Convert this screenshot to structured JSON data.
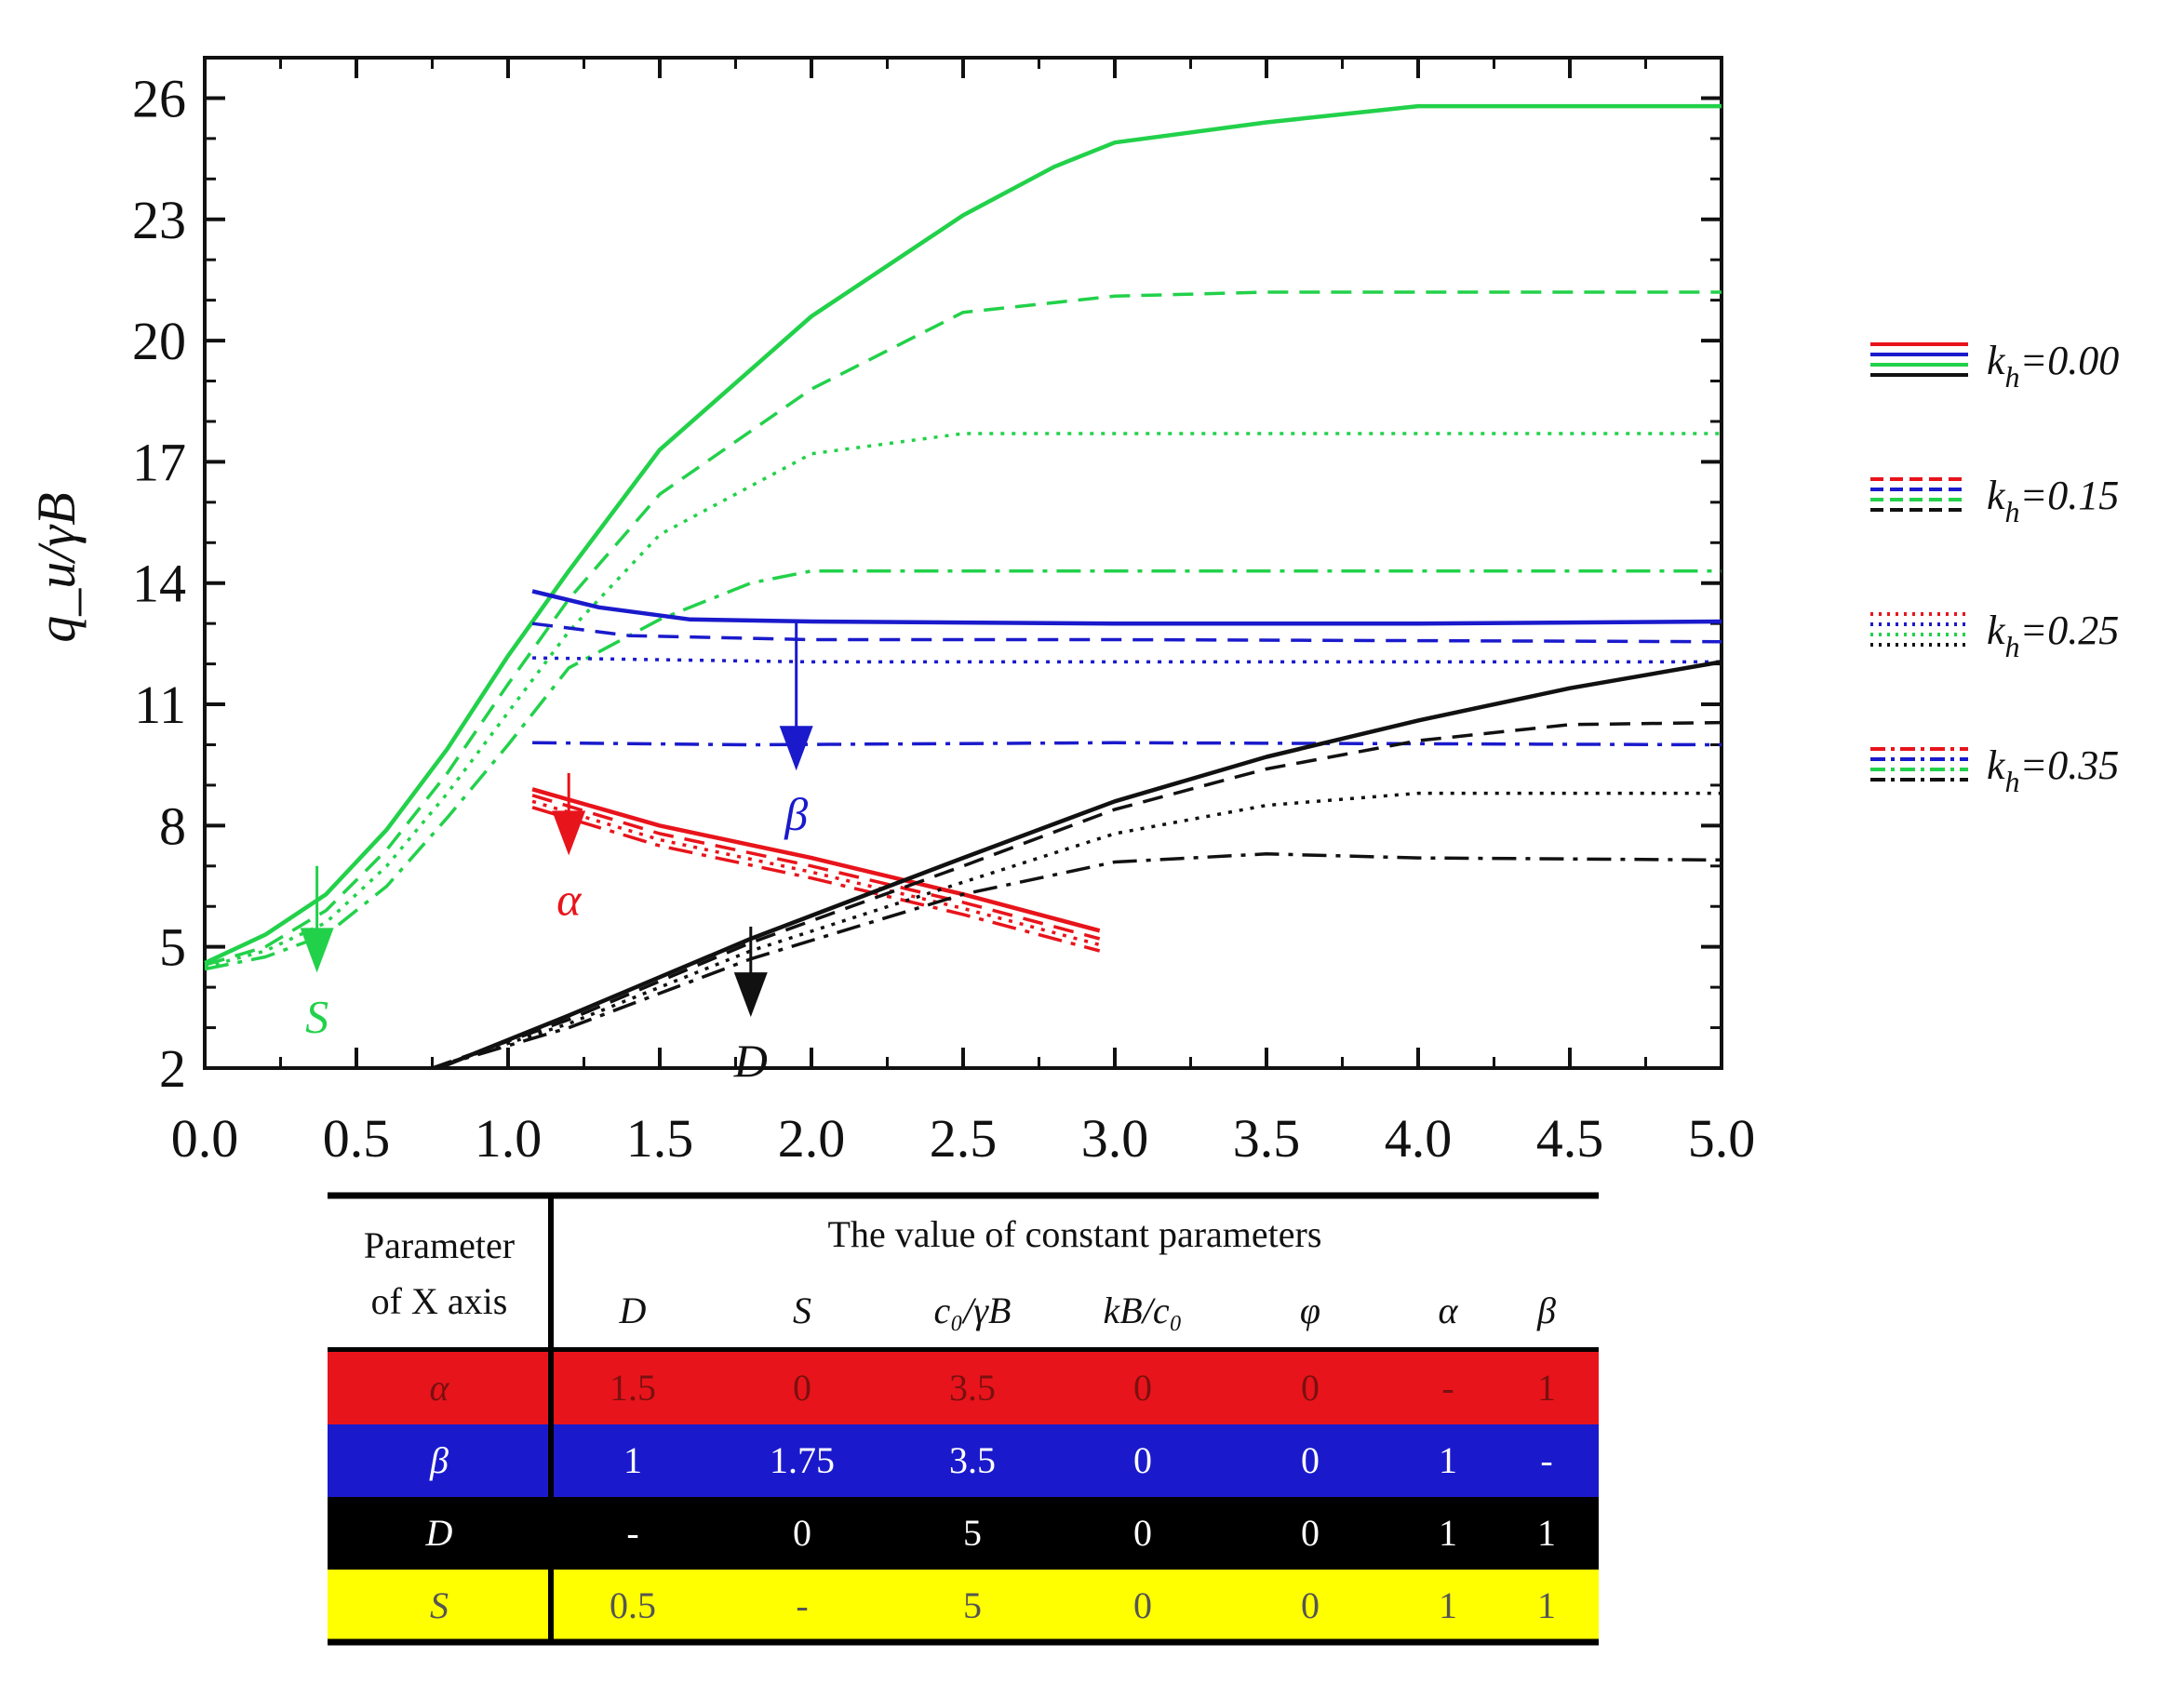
{
  "chart_data": {
    "type": "line",
    "title": "",
    "xlabel": "",
    "ylabel": "q_u/γB",
    "xlim": [
      0,
      5
    ],
    "ylim": [
      2,
      27
    ],
    "x_ticks": [
      "0.0",
      "0.5",
      "1.0",
      "1.5",
      "2.0",
      "2.5",
      "3.0",
      "3.5",
      "4.0",
      "4.5",
      "5.0"
    ],
    "y_ticks": [
      "2",
      "5",
      "8",
      "11",
      "14",
      "17",
      "20",
      "23",
      "26"
    ],
    "legend_position": "right",
    "legend": [
      {
        "label": "k_h=0.00",
        "kh": "0.00",
        "style": "solid"
      },
      {
        "label": "k_h=0.15",
        "kh": "0.15",
        "style": "dashed"
      },
      {
        "label": "k_h=0.25",
        "kh": "0.25",
        "style": "dotted"
      },
      {
        "label": "k_h=0.35",
        "kh": "0.35",
        "style": "dashdot"
      }
    ],
    "colors": {
      "red": "#e8141b",
      "blue": "#1a1acc",
      "green": "#22d14a",
      "black": "#111111"
    },
    "series": [
      {
        "name": "S k_h=0.00",
        "color": "green",
        "style": "solid",
        "points": [
          [
            0,
            4.6
          ],
          [
            0.2,
            5.3
          ],
          [
            0.4,
            6.3
          ],
          [
            0.6,
            7.9
          ],
          [
            0.8,
            9.9
          ],
          [
            1.0,
            12.2
          ],
          [
            1.2,
            14.3
          ],
          [
            1.5,
            17.3
          ],
          [
            2.0,
            20.6
          ],
          [
            2.5,
            23.1
          ],
          [
            2.8,
            24.3
          ],
          [
            3.0,
            24.9
          ],
          [
            3.5,
            25.4
          ],
          [
            4.0,
            25.8
          ],
          [
            5.0,
            25.8
          ]
        ]
      },
      {
        "name": "S k_h=0.15",
        "color": "green",
        "style": "dashed",
        "points": [
          [
            0,
            4.55
          ],
          [
            0.2,
            5.0
          ],
          [
            0.4,
            5.9
          ],
          [
            0.6,
            7.4
          ],
          [
            0.8,
            9.3
          ],
          [
            1.0,
            11.5
          ],
          [
            1.2,
            13.6
          ],
          [
            1.5,
            16.2
          ],
          [
            2.0,
            18.8
          ],
          [
            2.5,
            20.7
          ],
          [
            3.0,
            21.1
          ],
          [
            3.5,
            21.2
          ],
          [
            4.0,
            21.2
          ],
          [
            5.0,
            21.2
          ]
        ]
      },
      {
        "name": "S k_h=0.25",
        "color": "green",
        "style": "dotted",
        "points": [
          [
            0,
            4.5
          ],
          [
            0.2,
            4.9
          ],
          [
            0.4,
            5.6
          ],
          [
            0.6,
            7.0
          ],
          [
            0.8,
            8.8
          ],
          [
            1.0,
            10.8
          ],
          [
            1.2,
            12.8
          ],
          [
            1.5,
            15.2
          ],
          [
            2.0,
            17.2
          ],
          [
            2.5,
            17.7
          ],
          [
            3.0,
            17.7
          ],
          [
            5.0,
            17.7
          ]
        ]
      },
      {
        "name": "S k_h=0.35",
        "color": "green",
        "style": "dashdot",
        "points": [
          [
            0,
            4.45
          ],
          [
            0.2,
            4.75
          ],
          [
            0.4,
            5.3
          ],
          [
            0.6,
            6.5
          ],
          [
            0.8,
            8.2
          ],
          [
            1.0,
            10.0
          ],
          [
            1.2,
            11.9
          ],
          [
            1.5,
            13.1
          ],
          [
            1.8,
            14.0
          ],
          [
            2.0,
            14.3
          ],
          [
            2.5,
            14.3
          ],
          [
            5.0,
            14.3
          ]
        ]
      },
      {
        "name": "β k_h=0.00",
        "color": "blue",
        "style": "solid",
        "points": [
          [
            1.08,
            13.8
          ],
          [
            1.3,
            13.4
          ],
          [
            1.6,
            13.1
          ],
          [
            2.0,
            13.05
          ],
          [
            3.0,
            13.0
          ],
          [
            4.0,
            13.0
          ],
          [
            5.0,
            13.05
          ]
        ]
      },
      {
        "name": "β k_h=0.15",
        "color": "blue",
        "style": "dashed",
        "points": [
          [
            1.08,
            13.0
          ],
          [
            1.4,
            12.7
          ],
          [
            2.0,
            12.6
          ],
          [
            3.0,
            12.6
          ],
          [
            5.0,
            12.55
          ]
        ]
      },
      {
        "name": "β k_h=0.25",
        "color": "blue",
        "style": "dotted",
        "points": [
          [
            1.08,
            12.15
          ],
          [
            2.0,
            12.05
          ],
          [
            3.0,
            12.05
          ],
          [
            5.0,
            12.05
          ]
        ]
      },
      {
        "name": "β k_h=0.35",
        "color": "blue",
        "style": "dashdot",
        "points": [
          [
            1.08,
            10.05
          ],
          [
            1.8,
            10.0
          ],
          [
            3.0,
            10.05
          ],
          [
            5.0,
            10.0
          ]
        ]
      },
      {
        "name": "α k_h=0.00",
        "color": "red",
        "style": "solid",
        "points": [
          [
            1.08,
            8.9
          ],
          [
            1.5,
            8.0
          ],
          [
            2.0,
            7.2
          ],
          [
            2.5,
            6.3
          ],
          [
            2.95,
            5.4
          ]
        ]
      },
      {
        "name": "α k_h=0.15",
        "color": "red",
        "style": "dashed",
        "points": [
          [
            1.08,
            8.75
          ],
          [
            1.5,
            7.8
          ],
          [
            2.0,
            7.0
          ],
          [
            2.5,
            6.1
          ],
          [
            2.95,
            5.2
          ]
        ]
      },
      {
        "name": "α k_h=0.25",
        "color": "red",
        "style": "dotted",
        "points": [
          [
            1.08,
            8.6
          ],
          [
            1.5,
            7.65
          ],
          [
            2.0,
            6.85
          ],
          [
            2.5,
            5.95
          ],
          [
            2.95,
            5.05
          ]
        ]
      },
      {
        "name": "α k_h=0.35",
        "color": "red",
        "style": "dashdot",
        "points": [
          [
            1.08,
            8.45
          ],
          [
            1.5,
            7.5
          ],
          [
            2.0,
            6.7
          ],
          [
            2.5,
            5.8
          ],
          [
            2.95,
            4.9
          ]
        ]
      },
      {
        "name": "D k_h=0.00",
        "color": "black",
        "style": "solid",
        "points": [
          [
            0.77,
            2.0
          ],
          [
            1.2,
            3.3
          ],
          [
            1.8,
            5.2
          ],
          [
            2.5,
            7.2
          ],
          [
            3.0,
            8.6
          ],
          [
            3.5,
            9.7
          ],
          [
            4.0,
            10.6
          ],
          [
            4.5,
            11.4
          ],
          [
            5.0,
            12.05
          ]
        ]
      },
      {
        "name": "D k_h=0.15",
        "color": "black",
        "style": "dashed",
        "points": [
          [
            0.75,
            2.0
          ],
          [
            1.2,
            3.2
          ],
          [
            1.8,
            5.1
          ],
          [
            2.5,
            7.0
          ],
          [
            3.0,
            8.4
          ],
          [
            3.5,
            9.4
          ],
          [
            4.0,
            10.1
          ],
          [
            4.5,
            10.5
          ],
          [
            5.0,
            10.55
          ]
        ]
      },
      {
        "name": "D k_h=0.25",
        "color": "black",
        "style": "dotted",
        "points": [
          [
            0.75,
            2.0
          ],
          [
            1.2,
            3.1
          ],
          [
            1.8,
            4.9
          ],
          [
            2.5,
            6.6
          ],
          [
            3.0,
            7.8
          ],
          [
            3.5,
            8.5
          ],
          [
            4.0,
            8.8
          ],
          [
            5.0,
            8.8
          ]
        ]
      },
      {
        "name": "D k_h=0.35",
        "color": "black",
        "style": "dashdot",
        "points": [
          [
            0.75,
            2.0
          ],
          [
            1.2,
            3.0
          ],
          [
            1.8,
            4.7
          ],
          [
            2.5,
            6.3
          ],
          [
            3.0,
            7.1
          ],
          [
            3.5,
            7.3
          ],
          [
            4.0,
            7.2
          ],
          [
            5.0,
            7.15
          ]
        ]
      }
    ],
    "annotations": [
      {
        "label": "S",
        "color": "green",
        "x": 0.37,
        "y_from": 7.0,
        "y_to": 4.5
      },
      {
        "label": "β",
        "color": "blue",
        "x": 1.95,
        "y_from": 13.05,
        "y_to": 9.5
      },
      {
        "label": "α",
        "color": "red",
        "x": 1.2,
        "y_from": 9.3,
        "y_to": 7.4
      },
      {
        "label": "D",
        "color": "black",
        "x": 1.8,
        "y_from": 5.5,
        "y_to": 3.4
      }
    ]
  },
  "table": {
    "header_param_line1": "Parameter",
    "header_param_line2": "of X axis",
    "header_group": "The value of constant parameters",
    "columns": [
      "D",
      "S",
      "c₀/γB",
      "kB/c₀",
      "φ",
      "α",
      "β"
    ],
    "rows": [
      {
        "param": "α",
        "color": "#e8141b",
        "text_color": "#7a1010",
        "values": [
          "1.5",
          "0",
          "3.5",
          "0",
          "0",
          "-",
          "1"
        ]
      },
      {
        "param": "β",
        "color": "#1a1acc",
        "text_color": "#ffffff",
        "values": [
          "1",
          "1.75",
          "3.5",
          "0",
          "0",
          "1",
          "-"
        ]
      },
      {
        "param": "D",
        "color": "#000000",
        "text_color": "#ffffff",
        "values": [
          "-",
          "0",
          "5",
          "0",
          "0",
          "1",
          "1"
        ]
      },
      {
        "param": "S",
        "color": "#ffff00",
        "text_color": "#555555",
        "values": [
          "0.5",
          "-",
          "5",
          "0",
          "0",
          "1",
          "1"
        ]
      }
    ]
  }
}
